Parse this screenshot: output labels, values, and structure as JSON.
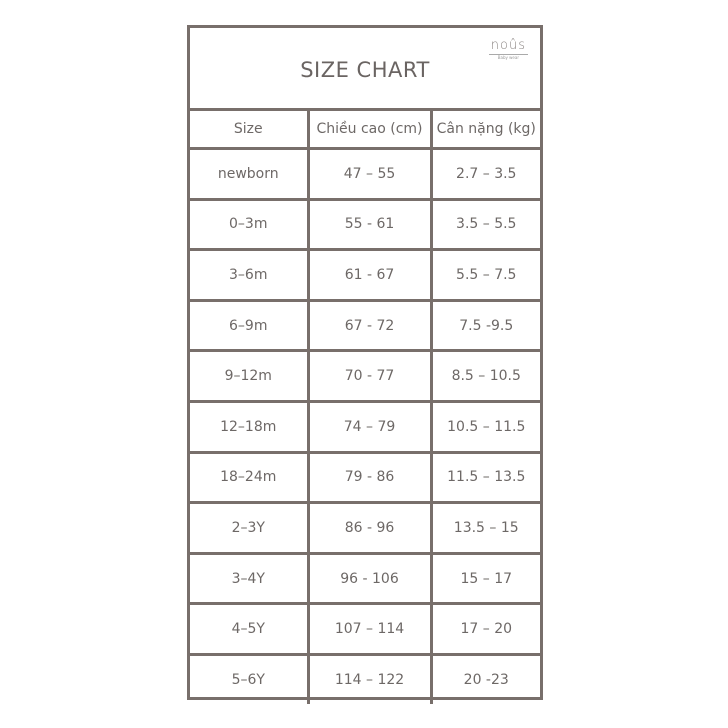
{
  "title": "SIZE CHART",
  "logo": {
    "word": "noûs",
    "tagline": "Baby wear"
  },
  "columns": [
    "Size",
    "Chiều cao (cm)",
    "Cân nặng (kg)"
  ],
  "rows": [
    [
      "newborn",
      "47 – 55",
      "2.7 – 3.5"
    ],
    [
      "0–3m",
      "55 - 61",
      "3.5 – 5.5"
    ],
    [
      "3–6m",
      "61 - 67",
      "5.5 – 7.5"
    ],
    [
      "6–9m",
      "67 - 72",
      "7.5 -9.5"
    ],
    [
      "9–12m",
      "70 - 77",
      "8.5 – 10.5"
    ],
    [
      "12–18m",
      "74 – 79",
      "10.5 – 11.5"
    ],
    [
      "18–24m",
      "79 - 86",
      "11.5 – 13.5"
    ],
    [
      "2–3Y",
      "86 - 96",
      "13.5 – 15"
    ],
    [
      "3–4Y",
      "96 - 106",
      "15 – 17"
    ],
    [
      "4–5Y",
      "107 – 114",
      "17 – 20"
    ],
    [
      "5–6Y",
      "114 – 122",
      "20 -23"
    ]
  ],
  "colors": {
    "border": "#786f6b",
    "text": "#6d6866"
  }
}
